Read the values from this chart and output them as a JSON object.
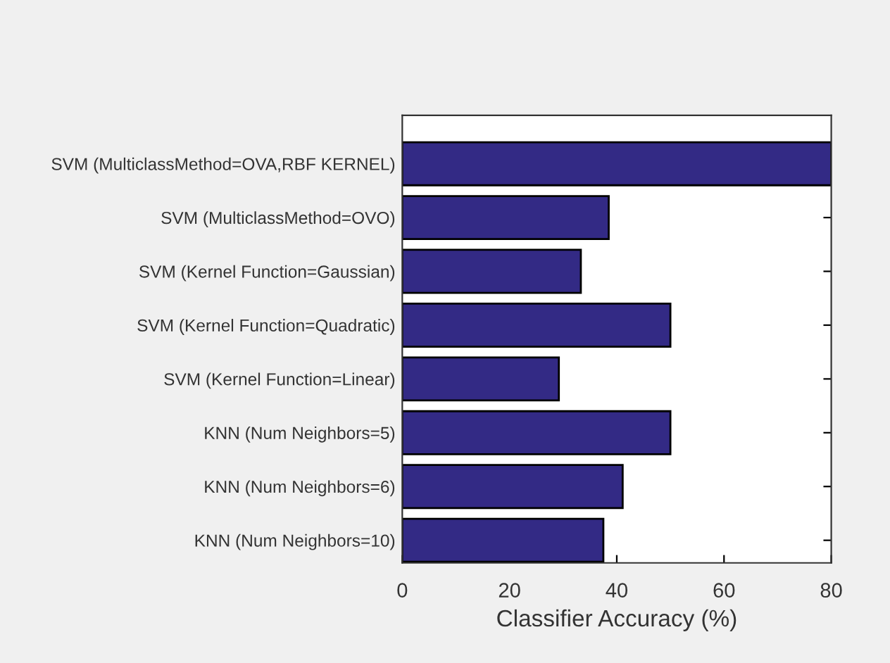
{
  "chart_data": {
    "type": "bar",
    "orientation": "horizontal",
    "xlabel": "Classifier Accuracy (%)",
    "categories": [
      "SVM (MulticlassMethod=OVA,RBF KERNEL)",
      "SVM (MulticlassMethod=OVO)",
      "SVM (Kernel Function=Gaussian)",
      "SVM (Kernel Function=Quadratic)",
      "SVM (Kernel Function=Linear)",
      "KNN (Num Neighbors=5)",
      "KNN (Num Neighbors=6)",
      "KNN (Num Neighbors=10)"
    ],
    "values": [
      80,
      38.5,
      33.3,
      50,
      29.2,
      50,
      41.1,
      37.5
    ],
    "color": "#332a85",
    "xlim": [
      0,
      80
    ],
    "xticks": [
      0,
      20,
      40,
      60,
      80
    ],
    "grid": false
  }
}
